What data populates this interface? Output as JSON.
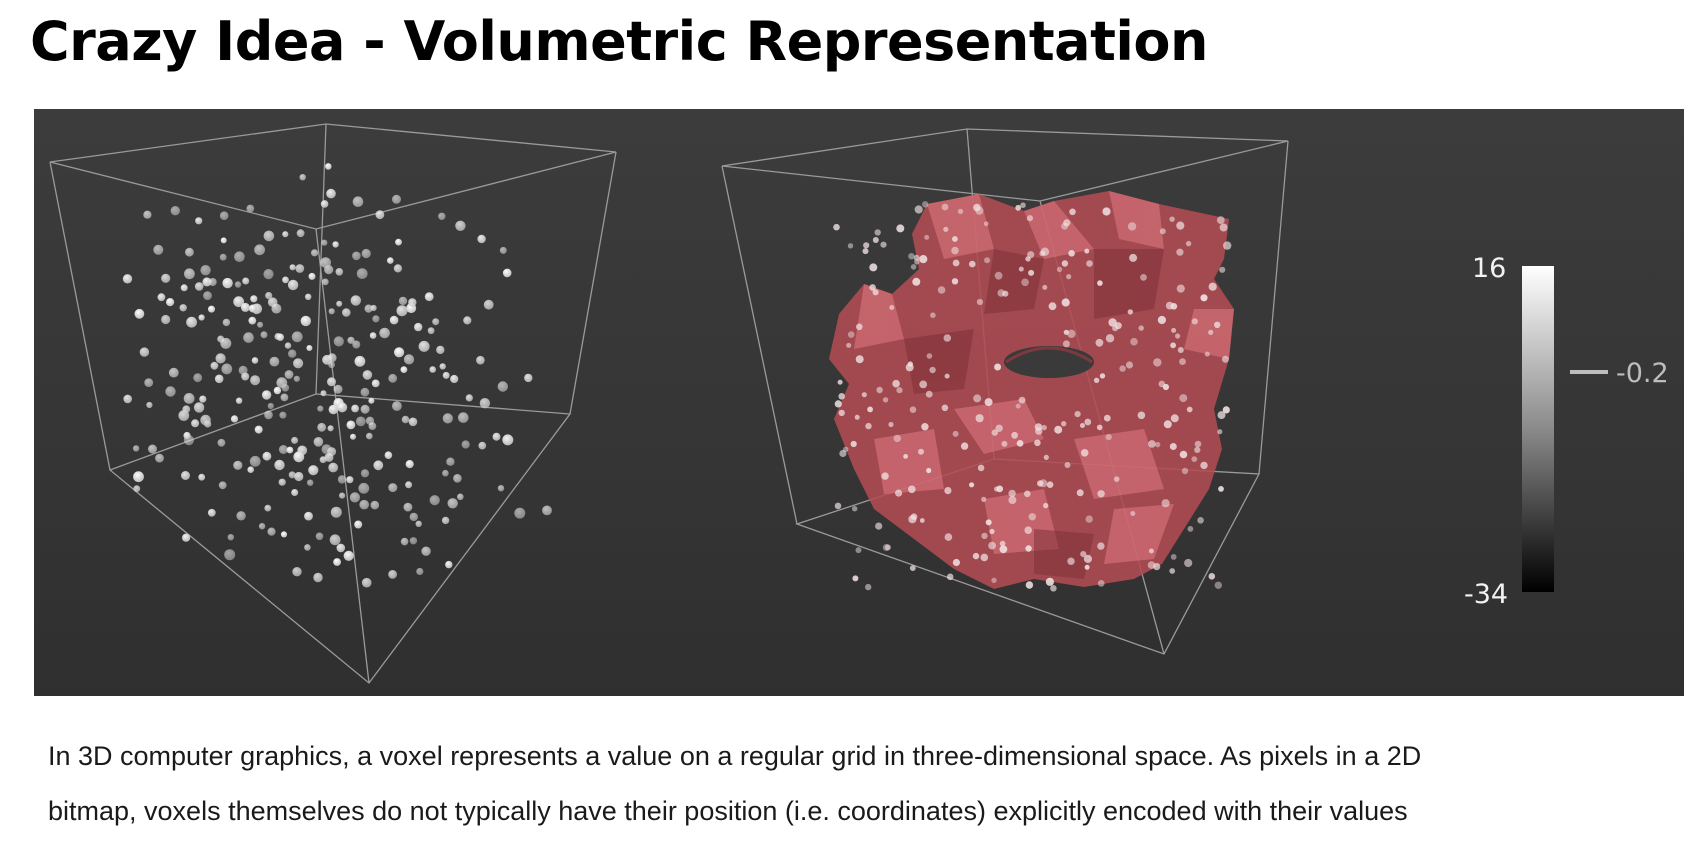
{
  "slide": {
    "title": "Crazy Idea - Volumetric Representation",
    "caption_lines": [
      "In 3D computer graphics, a voxel represents a value on a regular grid in three-dimensional space. As pixels in a 2D",
      "bitmap, voxels themselves do not typically have their position (i.e. coordinates) explicitly encoded with their values"
    ]
  },
  "figure": {
    "panels": [
      "voxel-point-cloud",
      "isosurface-mesh"
    ],
    "colorbar": {
      "max_label": "16",
      "min_label": "-34",
      "marker_label": "-0.2",
      "max": 16,
      "min": -34,
      "marker_value": -0.2
    },
    "colors": {
      "background": "#383838",
      "cube_edges": "#9a9a9a",
      "points": "#e6e6e6",
      "surface": "#c85a62",
      "surface_highlight": "#e58a90"
    }
  }
}
